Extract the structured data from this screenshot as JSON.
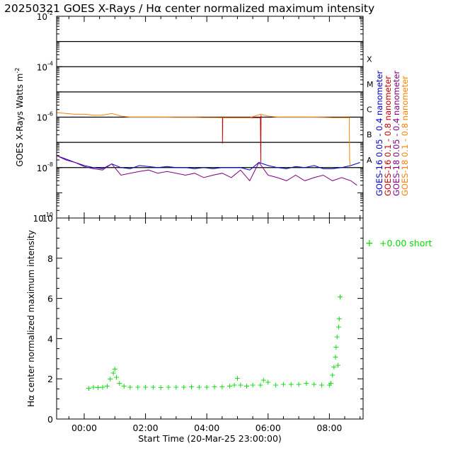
{
  "title": "20250321 GOES X-Rays / Hα center normalized maximum intensity",
  "colors": {
    "goes16_short": "#0000cc",
    "goes16_long": "#cc0000",
    "goes18_short": "#800080",
    "goes18_long": "#ff8000",
    "halpha": "#00dd00",
    "axis": "#000000"
  },
  "chart_data": [
    {
      "type": "line",
      "ylabel": "GOES X-Rays Watts m",
      "ylabel_sup": "-2",
      "yscale": "log",
      "ylim": [
        1e-10,
        0.01
      ],
      "xlim_hours": [
        -0.9,
        9.1
      ],
      "y_ticks": [
        {
          "base": "10",
          "exp": "-10",
          "value": 1e-10
        },
        {
          "base": "10",
          "exp": "-8",
          "value": 1e-08
        },
        {
          "base": "10",
          "exp": "-6",
          "value": 1e-06
        },
        {
          "base": "10",
          "exp": "-4",
          "value": 0.0001
        },
        {
          "base": "10",
          "exp": "-2",
          "value": 0.01
        }
      ],
      "flare_class_lines": [
        1e-08,
        1e-07,
        1e-06,
        1e-05,
        0.0001,
        0.001
      ],
      "flare_classes": [
        {
          "label": "A",
          "value": 1e-08
        },
        {
          "label": "B",
          "value": 1e-07
        },
        {
          "label": "C",
          "value": 1e-06
        },
        {
          "label": "M",
          "value": 1e-05
        },
        {
          "label": "X",
          "value": 0.0001
        }
      ],
      "series": [
        {
          "name": "GOES-16 0.05 - 0.4 nanometer",
          "color_key": "goes16_short",
          "x": [
            -0.9,
            -0.6,
            -0.3,
            0.0,
            0.3,
            0.6,
            0.9,
            1.2,
            1.5,
            1.8,
            2.1,
            2.4,
            2.7,
            3.0,
            3.3,
            3.6,
            3.9,
            4.2,
            4.5,
            4.8,
            5.1,
            5.4,
            5.7,
            6.0,
            6.3,
            6.6,
            6.9,
            7.2,
            7.5,
            7.8,
            8.1,
            8.4,
            8.7,
            9.0
          ],
          "y": [
            3e-08,
            2.2e-08,
            1.6e-08,
            1.2e-08,
            1e-08,
            9e-09,
            1.4e-08,
            1e-08,
            9e-09,
            1.2e-08,
            1.1e-08,
            1e-08,
            1.1e-08,
            1e-08,
            1e-08,
            9e-09,
            1e-08,
            9e-09,
            1e-08,
            1e-08,
            1e-08,
            8e-09,
            1.6e-08,
            1.2e-08,
            1e-08,
            9e-09,
            1.1e-08,
            1e-08,
            1.2e-08,
            9e-09,
            9e-09,
            1e-08,
            1.2e-08,
            1.6e-08
          ]
        },
        {
          "name": "GOES-16 0.1 - 0.8 nanometer",
          "color_key": "goes16_long",
          "x": [
            4.5,
            4.51,
            4.51,
            4.52,
            5.75,
            5.76,
            5.76,
            5.77
          ],
          "y": [
            9.5e-07,
            9.5e-07,
            9e-08,
            9.5e-07,
            9.5e-07,
            1.6e-08,
            1.6e-08,
            1.2e-06
          ]
        },
        {
          "name": "GOES-18 0.05 - 0.4 nanometer",
          "color_key": "goes18_short",
          "x": [
            -0.9,
            -0.6,
            -0.3,
            0.0,
            0.3,
            0.6,
            0.9,
            1.2,
            1.5,
            1.8,
            2.1,
            2.4,
            2.7,
            3.0,
            3.3,
            3.6,
            3.9,
            4.2,
            4.5,
            4.8,
            5.1,
            5.4,
            5.7,
            6.0,
            6.3,
            6.6,
            6.9,
            7.2,
            7.5,
            7.8,
            8.1,
            8.4,
            8.7,
            8.9
          ],
          "y": [
            3e-08,
            2e-08,
            1.6e-08,
            1.1e-08,
            9e-09,
            8e-09,
            1.4e-08,
            5e-09,
            6e-09,
            7e-09,
            8e-09,
            6e-09,
            7e-09,
            6e-09,
            5e-09,
            6e-09,
            4e-09,
            5e-09,
            6e-09,
            4e-09,
            8e-09,
            3e-09,
            1.6e-08,
            5e-09,
            4e-09,
            3e-09,
            5e-09,
            3e-09,
            4e-09,
            5e-09,
            3e-09,
            4e-09,
            3e-09,
            2e-09
          ]
        },
        {
          "name": "GOES-18 0.1 - 0.8 nanometer",
          "color_key": "goes18_long",
          "x": [
            -0.9,
            -0.6,
            -0.3,
            0.0,
            0.3,
            0.6,
            0.9,
            1.2,
            1.5,
            1.8,
            2.1,
            2.4,
            2.7,
            3.0,
            3.3,
            3.6,
            3.9,
            4.2,
            4.5,
            4.8,
            5.1,
            5.4,
            5.75,
            6.0,
            6.3,
            6.6,
            6.9,
            7.2,
            7.5,
            7.8,
            8.1,
            8.4,
            8.65,
            8.66,
            8.68
          ],
          "y": [
            1.5e-06,
            1.4e-06,
            1.3e-06,
            1.3e-06,
            1.2e-06,
            1.2e-06,
            1.4e-06,
            1.1e-06,
            1e-06,
            1e-06,
            1e-06,
            1e-06,
            1e-06,
            9.8e-07,
            9.8e-07,
            9.8e-07,
            9.6e-07,
            9.6e-07,
            9.5e-07,
            9.5e-07,
            9.5e-07,
            9.5e-07,
            1.3e-06,
            1.1e-06,
            1e-06,
            1e-06,
            1e-06,
            1e-06,
            1e-06,
            9.8e-07,
            9.5e-07,
            9.5e-07,
            9.5e-07,
            2e-08,
            1.2e-08
          ]
        }
      ]
    },
    {
      "type": "scatter",
      "ylabel": "Hα center normalized maximum intensity",
      "xlabel": "Start Time (20-Mar-25 23:00:00)",
      "ylim": [
        0,
        10
      ],
      "y_ticks": [
        0,
        2,
        4,
        6,
        8,
        10
      ],
      "xlim_hours": [
        -0.9,
        9.1
      ],
      "x_ticks": [
        {
          "label": "00:00",
          "value": 0
        },
        {
          "label": "02:00",
          "value": 2
        },
        {
          "label": "04:00",
          "value": 4
        },
        {
          "label": "06:00",
          "value": 6
        },
        {
          "label": "08:00",
          "value": 8
        }
      ],
      "legend": {
        "marker": "+",
        "label": "+0.00 short",
        "placement": "top-right"
      },
      "series": [
        {
          "name": "Hα",
          "color_key": "halpha",
          "marker": "+",
          "x": [
            0.15,
            0.3,
            0.45,
            0.6,
            0.75,
            0.85,
            0.95,
            1.0,
            1.05,
            1.15,
            1.3,
            1.5,
            1.75,
            2.0,
            2.25,
            2.5,
            2.75,
            3.0,
            3.25,
            3.5,
            3.75,
            4.0,
            4.25,
            4.5,
            4.75,
            4.9,
            5.0,
            5.1,
            5.3,
            5.5,
            5.75,
            5.85,
            6.0,
            6.25,
            6.5,
            6.75,
            7.0,
            7.25,
            7.5,
            7.75,
            8.0,
            8.05,
            8.1,
            8.15,
            8.2,
            8.22,
            8.25,
            8.28,
            8.3,
            8.32,
            8.35
          ],
          "y": [
            1.55,
            1.6,
            1.58,
            1.6,
            1.65,
            2.0,
            2.3,
            2.5,
            2.1,
            1.8,
            1.65,
            1.6,
            1.6,
            1.6,
            1.6,
            1.58,
            1.6,
            1.6,
            1.6,
            1.62,
            1.6,
            1.6,
            1.62,
            1.62,
            1.65,
            1.7,
            2.05,
            1.7,
            1.65,
            1.7,
            1.7,
            1.95,
            1.85,
            1.7,
            1.75,
            1.75,
            1.75,
            1.8,
            1.75,
            1.7,
            1.7,
            1.8,
            2.2,
            2.6,
            3.1,
            3.6,
            4.1,
            2.7,
            4.6,
            5.0,
            6.1
          ]
        }
      ]
    }
  ]
}
